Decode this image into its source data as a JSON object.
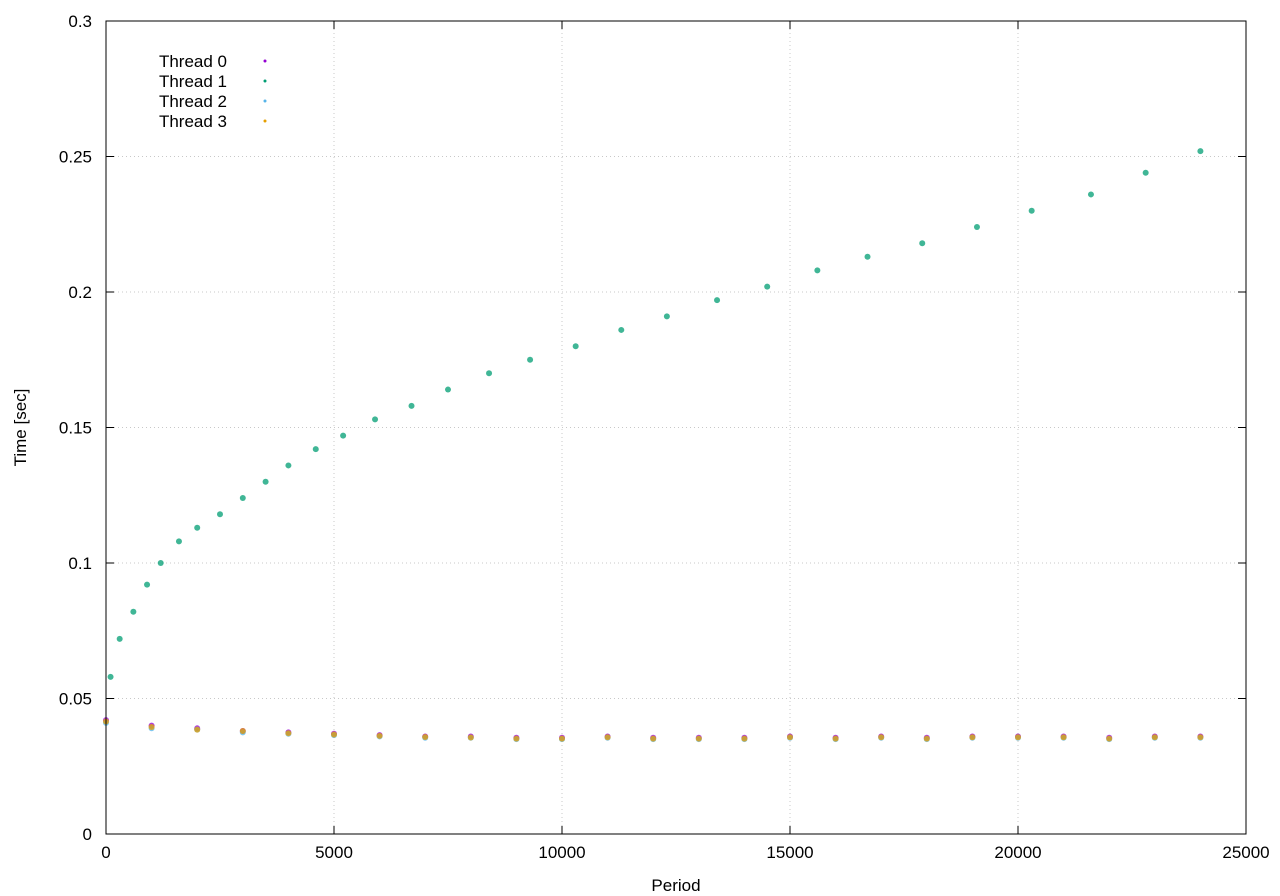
{
  "chart_data": {
    "type": "scatter",
    "title": "",
    "xlabel": "Period",
    "ylabel": "Time [sec]",
    "xlim": [
      0,
      25000
    ],
    "ylim": [
      0,
      0.3
    ],
    "x_ticks": [
      0,
      5000,
      10000,
      15000,
      20000,
      25000
    ],
    "x_tick_labels": [
      "0",
      "5000",
      "10000",
      "15000",
      "20000",
      "25000"
    ],
    "y_ticks": [
      0,
      0.05,
      0.1,
      0.15,
      0.2,
      0.25,
      0.3
    ],
    "y_tick_labels": [
      "0",
      "0.05",
      "0.1",
      "0.15",
      "0.2",
      "0.25",
      "0.3"
    ],
    "grid": true,
    "legend_position": "top-left",
    "series": [
      {
        "name": "Thread 0",
        "color": "#9400d3",
        "x": [
          0,
          1000,
          2000,
          3000,
          4000,
          5000,
          6000,
          7000,
          8000,
          9000,
          10000,
          11000,
          12000,
          13000,
          14000,
          15000,
          16000,
          17000,
          18000,
          19000,
          20000,
          21000,
          22000,
          23000,
          24000
        ],
        "y": [
          0.042,
          0.04,
          0.039,
          0.038,
          0.0375,
          0.037,
          0.0365,
          0.036,
          0.036,
          0.0355,
          0.0355,
          0.036,
          0.0355,
          0.0355,
          0.0355,
          0.036,
          0.0355,
          0.036,
          0.0355,
          0.036,
          0.036,
          0.036,
          0.0355,
          0.036,
          0.036
        ]
      },
      {
        "name": "Thread 1",
        "color": "#009e73",
        "x": [
          100,
          300,
          600,
          900,
          1200,
          1600,
          2000,
          2500,
          3000,
          3500,
          4000,
          4600,
          5200,
          5900,
          6700,
          7500,
          8400,
          9300,
          10300,
          11300,
          12300,
          13400,
          14500,
          15600,
          16700,
          17900,
          19100,
          20300,
          21600,
          22800,
          24000
        ],
        "y": [
          0.058,
          0.072,
          0.082,
          0.092,
          0.1,
          0.108,
          0.113,
          0.118,
          0.124,
          0.13,
          0.136,
          0.142,
          0.147,
          0.153,
          0.158,
          0.164,
          0.17,
          0.175,
          0.18,
          0.186,
          0.191,
          0.197,
          0.202,
          0.208,
          0.213,
          0.218,
          0.224,
          0.23,
          0.236,
          0.244,
          0.252
        ]
      },
      {
        "name": "Thread 2",
        "color": "#56b4e9",
        "x": [
          0,
          1000,
          2000,
          3000,
          4000,
          5000,
          6000,
          7000,
          8000,
          9000,
          10000,
          11000,
          12000,
          13000,
          14000,
          15000,
          16000,
          17000,
          18000,
          19000,
          20000,
          21000,
          22000,
          23000,
          24000
        ],
        "y": [
          0.041,
          0.039,
          0.0385,
          0.0375,
          0.037,
          0.0365,
          0.036,
          0.0355,
          0.0355,
          0.035,
          0.035,
          0.0355,
          0.035,
          0.035,
          0.035,
          0.0355,
          0.035,
          0.0355,
          0.035,
          0.0355,
          0.0355,
          0.0355,
          0.035,
          0.0355,
          0.0355
        ]
      },
      {
        "name": "Thread 3",
        "color": "#e69f00",
        "x": [
          0,
          1000,
          2000,
          3000,
          4000,
          5000,
          6000,
          7000,
          8000,
          9000,
          10000,
          11000,
          12000,
          13000,
          14000,
          15000,
          16000,
          17000,
          18000,
          19000,
          20000,
          21000,
          22000,
          23000,
          24000
        ],
        "y": [
          0.0415,
          0.0395,
          0.0385,
          0.038,
          0.0372,
          0.0367,
          0.0362,
          0.0358,
          0.0356,
          0.0352,
          0.0352,
          0.0357,
          0.0352,
          0.0352,
          0.0352,
          0.0357,
          0.0352,
          0.0357,
          0.0352,
          0.0357,
          0.0357,
          0.0357,
          0.0352,
          0.0357,
          0.0357
        ]
      }
    ]
  }
}
